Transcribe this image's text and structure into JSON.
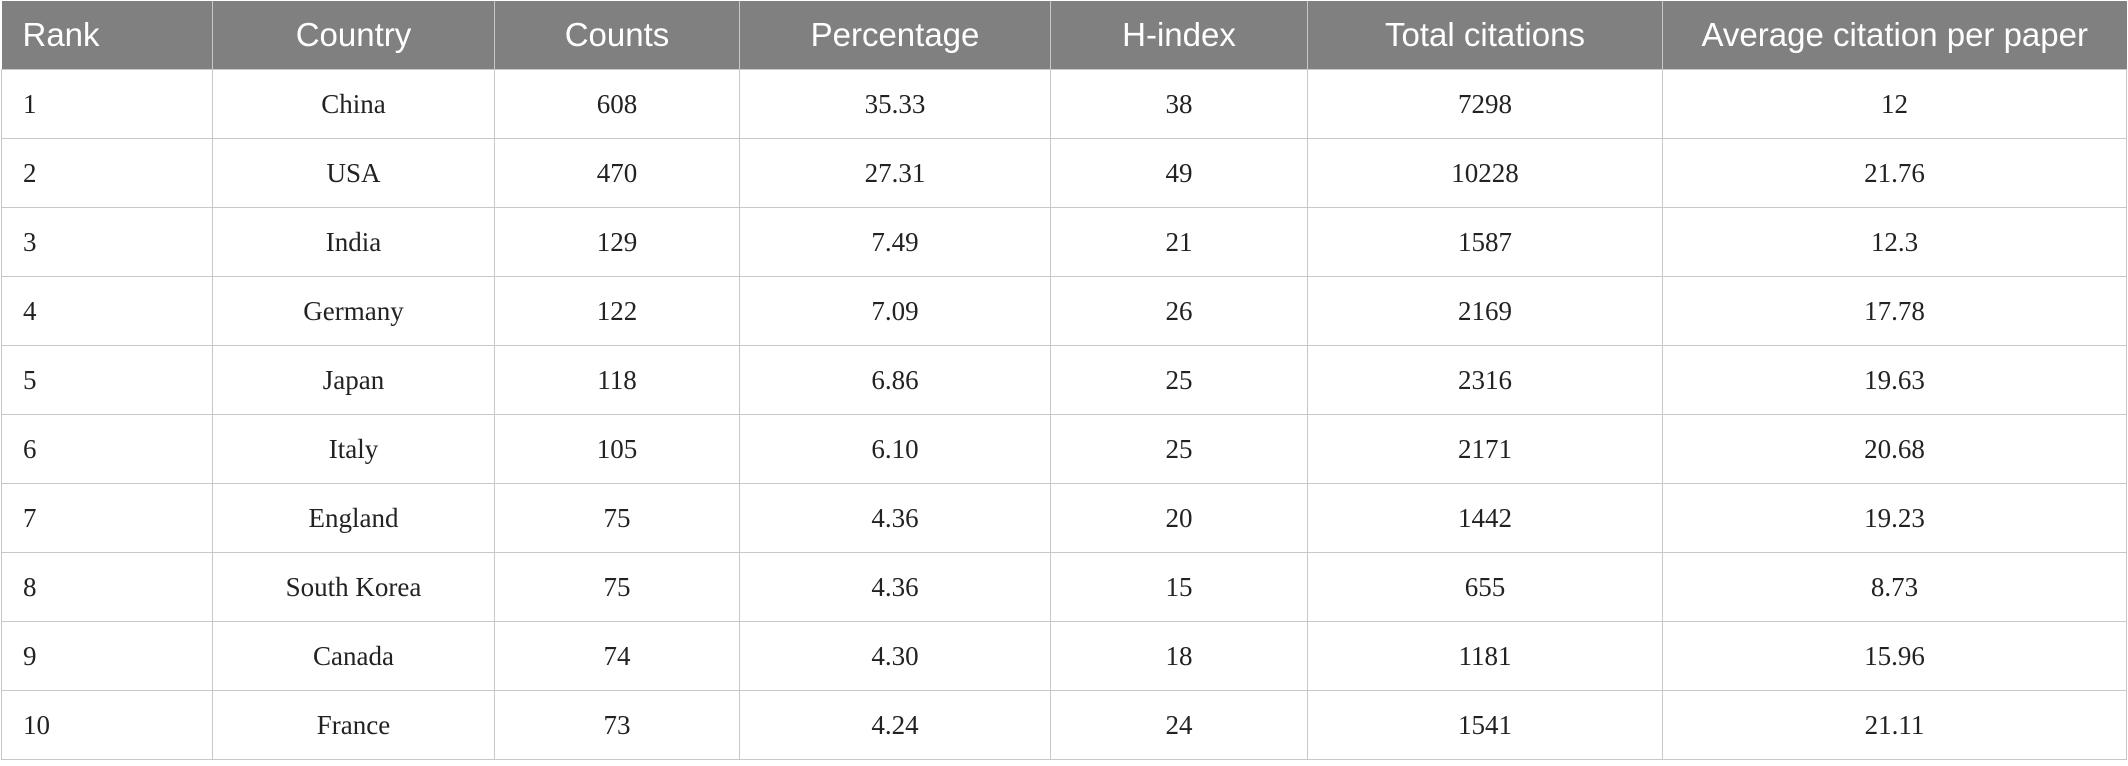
{
  "table": {
    "columns": [
      "Rank",
      "Country",
      "Counts",
      "Percentage",
      "H-index",
      "Total citations",
      "Average citation per paper"
    ],
    "rows": [
      [
        "1",
        "China",
        "608",
        "35.33",
        "38",
        "7298",
        "12"
      ],
      [
        "2",
        "USA",
        "470",
        "27.31",
        "49",
        "10228",
        "21.76"
      ],
      [
        "3",
        "India",
        "129",
        "7.49",
        "21",
        "1587",
        "12.3"
      ],
      [
        "4",
        "Germany",
        "122",
        "7.09",
        "26",
        "2169",
        "17.78"
      ],
      [
        "5",
        "Japan",
        "118",
        "6.86",
        "25",
        "2316",
        "19.63"
      ],
      [
        "6",
        "Italy",
        "105",
        "6.10",
        "25",
        "2171",
        "20.68"
      ],
      [
        "7",
        "England",
        "75",
        "4.36",
        "20",
        "1442",
        "19.23"
      ],
      [
        "8",
        "South Korea",
        "75",
        "4.36",
        "15",
        "655",
        "8.73"
      ],
      [
        "9",
        "Canada",
        "74",
        "4.30",
        "18",
        "1181",
        "15.96"
      ],
      [
        "10",
        "France",
        "73",
        "4.24",
        "24",
        "1541",
        "21.11"
      ]
    ]
  },
  "colors": {
    "header_bg": "#808080",
    "header_text": "#ffffff",
    "grid_line": "#c8c8c8",
    "cell_text": "#222222"
  }
}
